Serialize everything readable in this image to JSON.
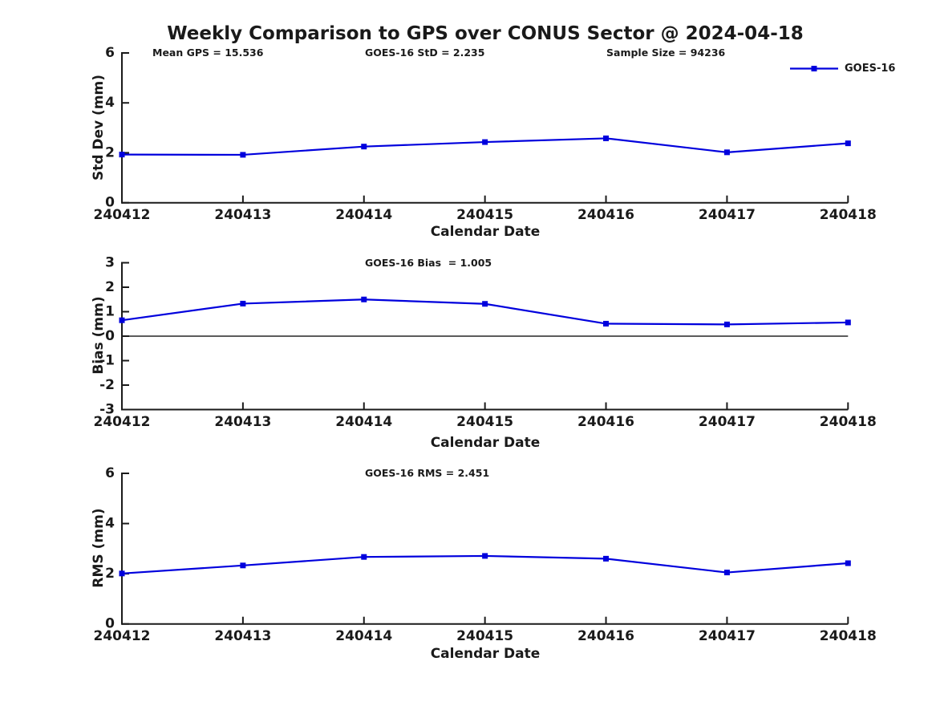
{
  "title": "Weekly Comparison to GPS over CONUS Sector @ 2024-04-18",
  "legend": {
    "label": "GOES-16"
  },
  "colors": {
    "series": "#0000DD",
    "axis": "#1a1a1a",
    "text": "#1a1a1a",
    "zero_line": "#444444",
    "background": "#ffffff"
  },
  "chart_data": [
    {
      "type": "line",
      "name": "std-dev-panel",
      "ylabel": "Std Dev (mm)",
      "xlabel": "Calendar Date",
      "categories": [
        "240412",
        "240413",
        "240414",
        "240415",
        "240416",
        "240417",
        "240418"
      ],
      "series": [
        {
          "name": "GOES-16",
          "color": "#0000DD",
          "marker": "square",
          "values": [
            1.93,
            1.92,
            2.25,
            2.43,
            2.58,
            2.02,
            2.38
          ]
        }
      ],
      "ylim": [
        0,
        6
      ],
      "yticks": [
        0,
        2,
        4,
        6
      ],
      "grid": false,
      "zero_line": false,
      "legend_position": "top-right",
      "annotations": [
        "Mean GPS = 15.536",
        "GOES-16 StD = 2.235",
        "Sample Size = 94236"
      ]
    },
    {
      "type": "line",
      "name": "bias-panel",
      "ylabel": "Bias (mm)",
      "xlabel": "Calendar Date",
      "categories": [
        "240412",
        "240413",
        "240414",
        "240415",
        "240416",
        "240417",
        "240418"
      ],
      "series": [
        {
          "name": "GOES-16",
          "color": "#0000DD",
          "marker": "square",
          "values": [
            0.65,
            1.33,
            1.5,
            1.32,
            0.51,
            0.48,
            0.56
          ]
        }
      ],
      "ylim": [
        -3,
        3
      ],
      "yticks": [
        -3,
        -2,
        -1,
        0,
        1,
        2,
        3
      ],
      "grid": false,
      "zero_line": true,
      "annotations": [
        "GOES-16 Bias  = 1.005"
      ]
    },
    {
      "type": "line",
      "name": "rms-panel",
      "ylabel": "RMS (mm)",
      "xlabel": "Calendar Date",
      "categories": [
        "240412",
        "240413",
        "240414",
        "240415",
        "240416",
        "240417",
        "240418"
      ],
      "series": [
        {
          "name": "GOES-16",
          "color": "#0000DD",
          "marker": "square",
          "values": [
            2.01,
            2.33,
            2.67,
            2.71,
            2.6,
            2.05,
            2.42
          ]
        }
      ],
      "ylim": [
        0,
        6
      ],
      "yticks": [
        0,
        2,
        4,
        6
      ],
      "grid": false,
      "zero_line": false,
      "annotations": [
        "GOES-16 RMS = 2.451"
      ]
    }
  ]
}
